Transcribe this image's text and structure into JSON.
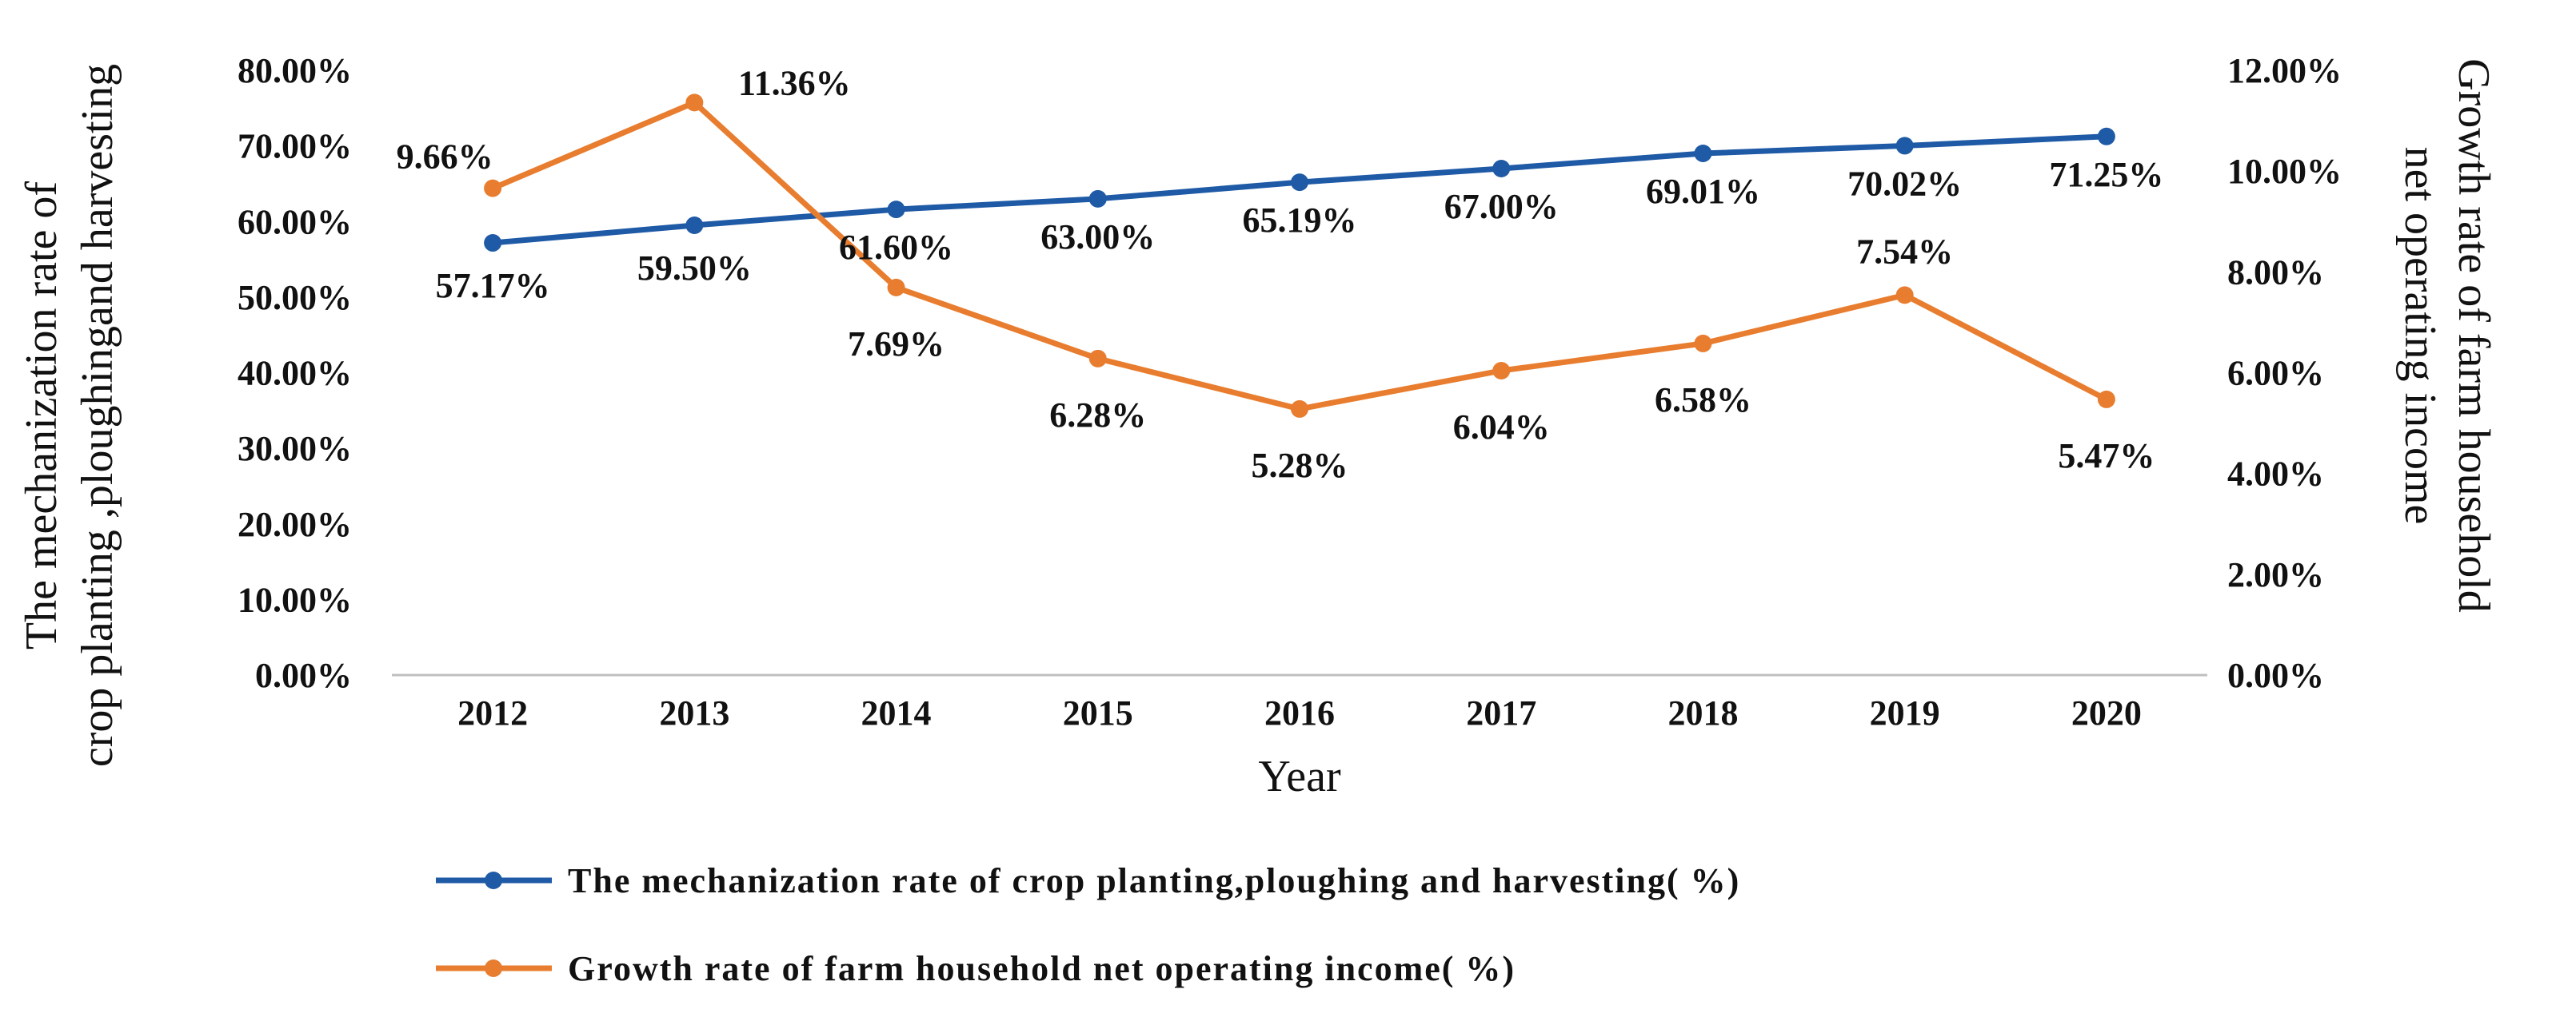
{
  "chart_data": {
    "type": "line",
    "x": [
      "2012",
      "2013",
      "2014",
      "2015",
      "2016",
      "2017",
      "2018",
      "2019",
      "2020"
    ],
    "xlabel": "Year",
    "ylabel_left": [
      "The mechanization rate of",
      "crop planting ,ploughingand harvesting"
    ],
    "ylabel_right": [
      "Growth rate of farm household",
      "net operating income"
    ],
    "ylim_left": [
      0,
      80
    ],
    "ylim_right": [
      0,
      12
    ],
    "yticks_left": [
      "0.00%",
      "10.00%",
      "20.00%",
      "30.00%",
      "40.00%",
      "50.00%",
      "60.00%",
      "70.00%",
      "80.00%"
    ],
    "yticks_right": [
      "0.00%",
      "2.00%",
      "4.00%",
      "6.00%",
      "8.00%",
      "10.00%",
      "12.00%"
    ],
    "legend_position": "bottom",
    "series": [
      {
        "name": "The mechanization rate of crop planting,ploughing and harvesting( %)",
        "axis": "left",
        "color": "#1f5aa6",
        "values": [
          57.17,
          59.5,
          61.6,
          63.0,
          65.19,
          67.0,
          69.01,
          70.02,
          71.25
        ],
        "labels": [
          "57.17%",
          "59.50%",
          "61.60%",
          "63.00%",
          "65.19%",
          "67.00%",
          "69.01%",
          "70.02%",
          "71.25%"
        ]
      },
      {
        "name": "Growth rate of farm household net operating income( %)",
        "axis": "right",
        "color": "#e87d2f",
        "values": [
          9.66,
          11.36,
          7.69,
          6.28,
          5.28,
          6.04,
          6.58,
          7.54,
          5.47
        ],
        "labels": [
          "9.66%",
          "11.36%",
          "7.69%",
          "6.28%",
          "5.28%",
          "6.04%",
          "6.58%",
          "7.54%",
          "5.47%"
        ]
      }
    ]
  }
}
